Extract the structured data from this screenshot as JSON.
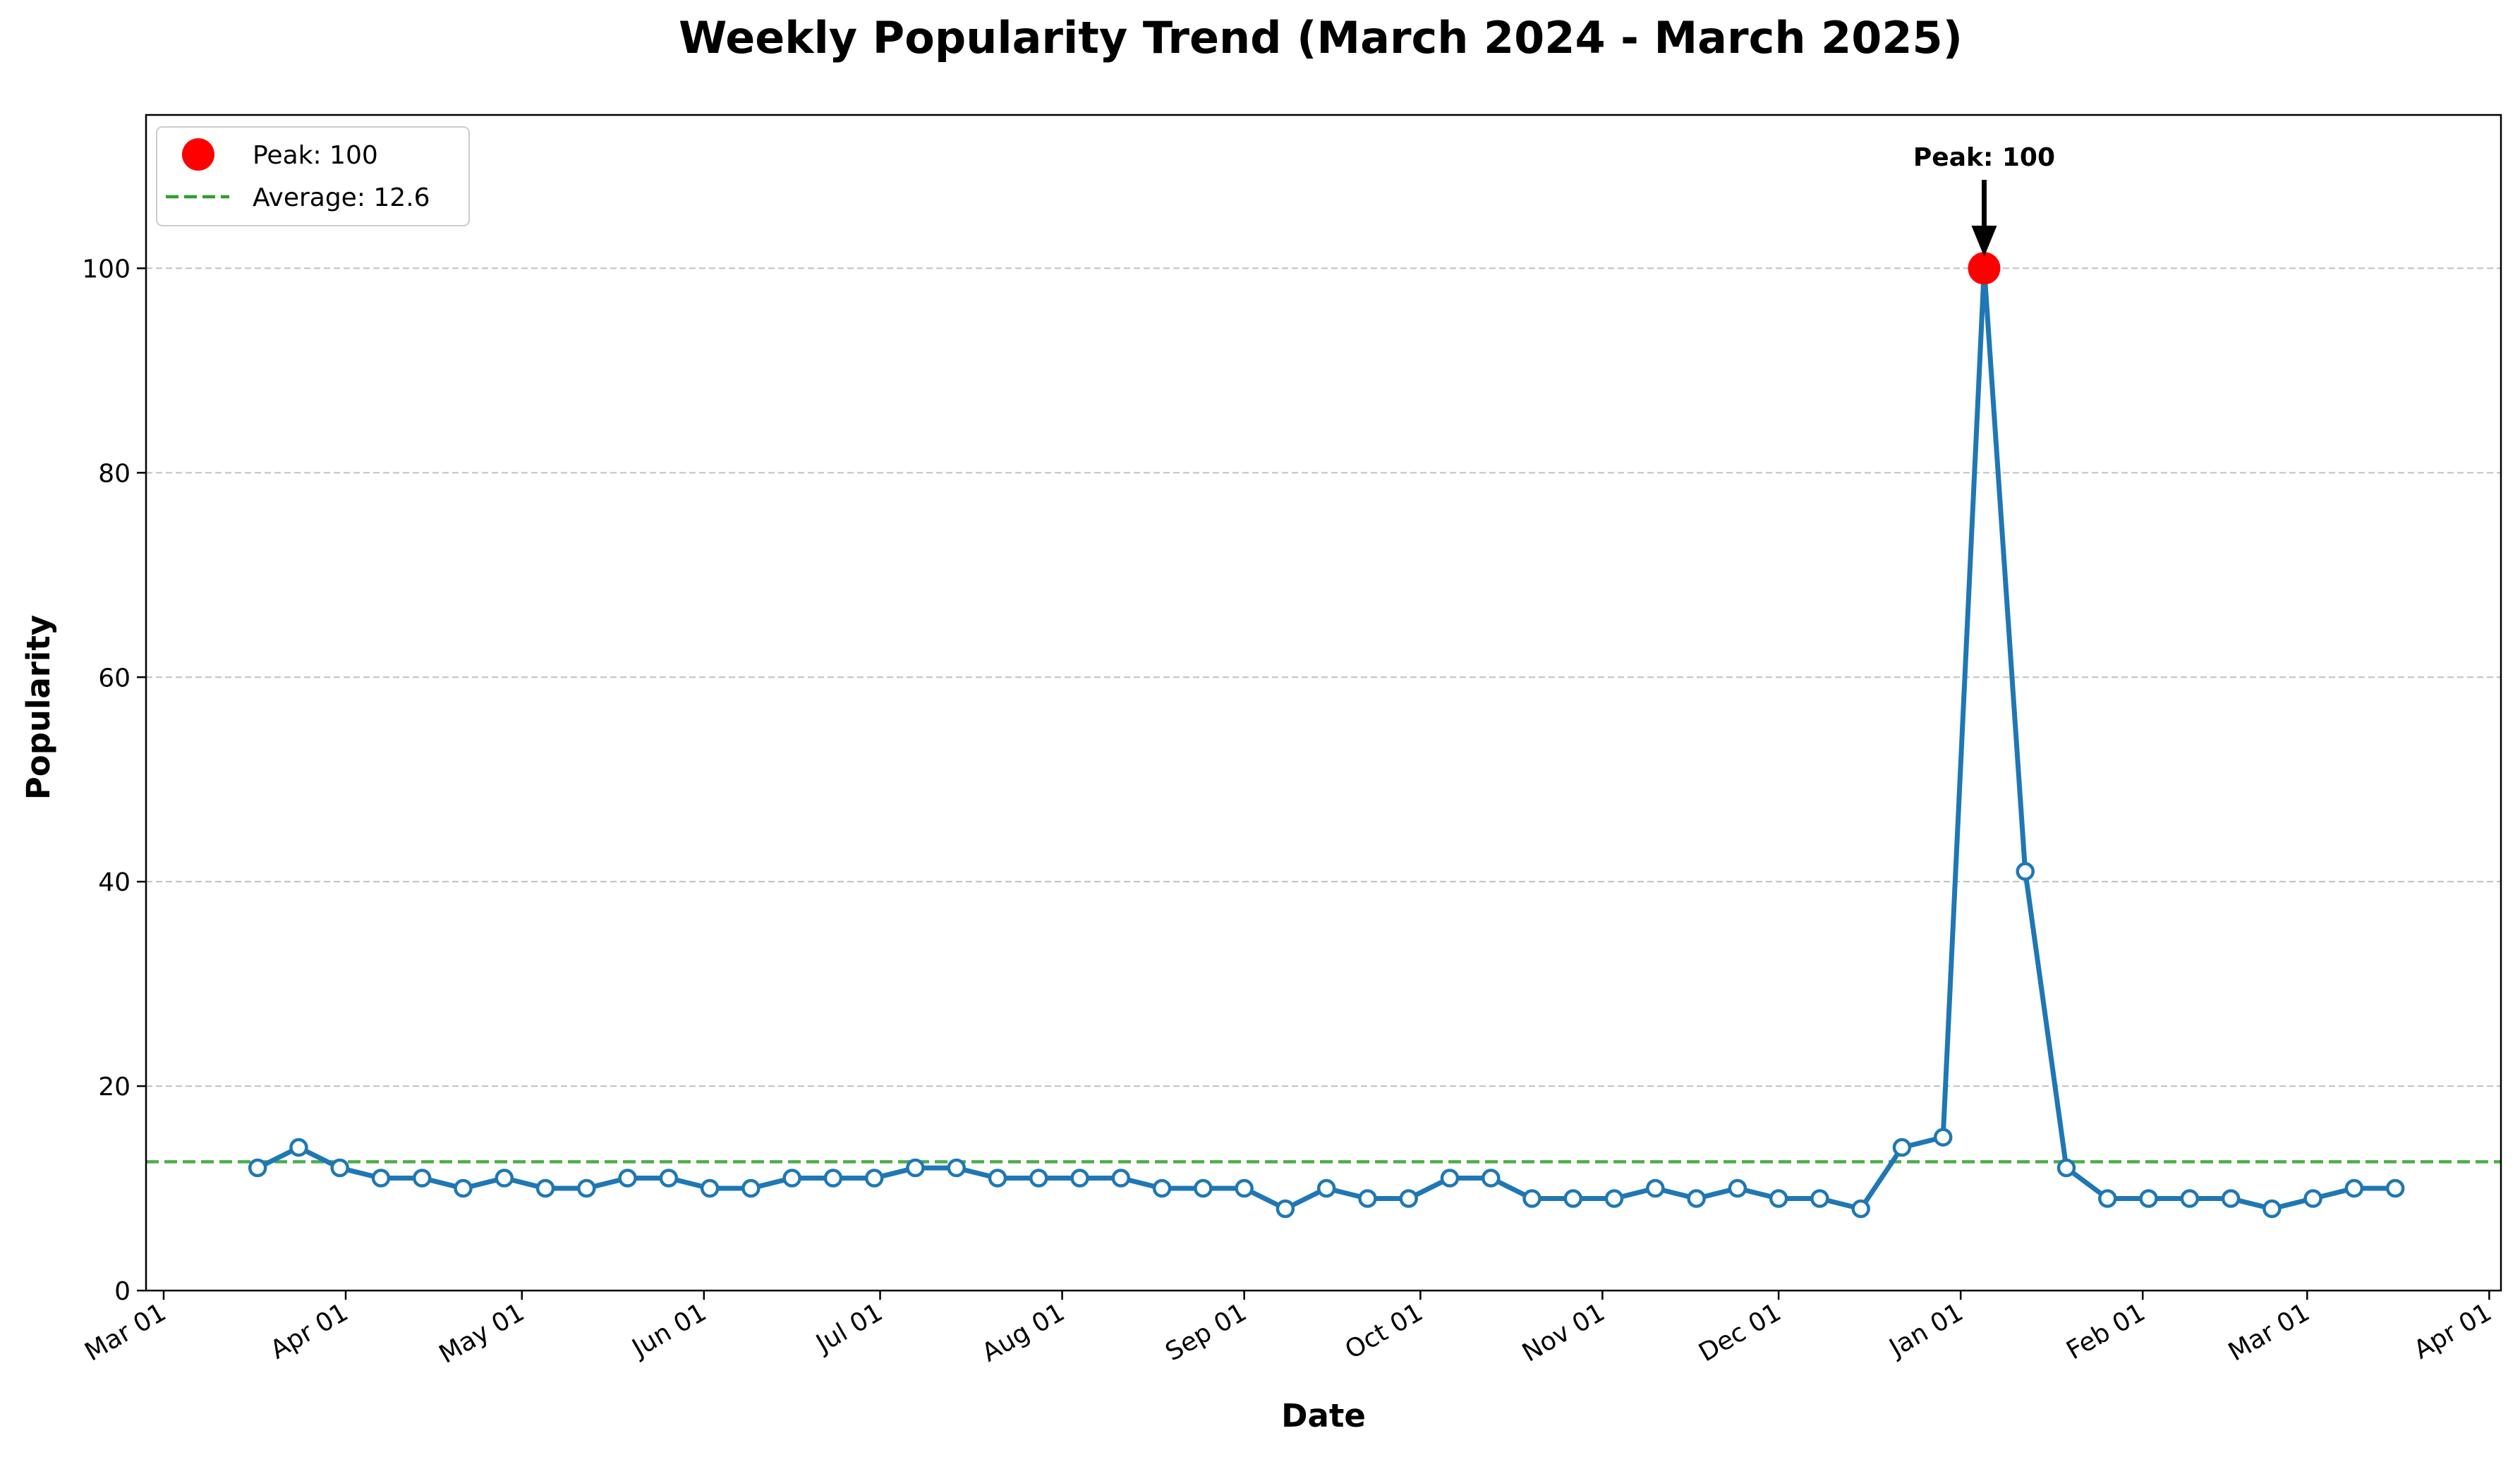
{
  "chart_data": {
    "type": "line",
    "title": "Weekly Popularity Trend (March 2024 - March 2025)",
    "xlabel": "Date",
    "ylabel": "Popularity",
    "xlim": [
      "2024-02-27",
      "2025-04-03"
    ],
    "ylim": [
      0,
      115
    ],
    "grid": {
      "y": true,
      "x": false
    },
    "x_ticks": [
      "2024-03-01",
      "2024-04-01",
      "2024-05-01",
      "2024-06-01",
      "2024-07-01",
      "2024-08-01",
      "2024-09-01",
      "2024-10-01",
      "2024-11-01",
      "2024-12-01",
      "2025-01-01",
      "2025-02-01",
      "2025-03-01",
      "2025-04-01"
    ],
    "x_tick_labels": [
      "Mar 01",
      "Apr 01",
      "May 01",
      "Jun 01",
      "Jul 01",
      "Aug 01",
      "Sep 01",
      "Oct 01",
      "Nov 01",
      "Dec 01",
      "Jan 01",
      "Feb 01",
      "Mar 01",
      "Apr 01"
    ],
    "y_ticks": [
      0,
      20,
      40,
      60,
      80,
      100
    ],
    "y_tick_labels": [
      "0",
      "20",
      "40",
      "60",
      "80",
      "100"
    ],
    "series": [
      {
        "color": "#1f77b4",
        "x": [
          "2024-03-17",
          "2024-03-24",
          "2024-03-31",
          "2024-04-07",
          "2024-04-14",
          "2024-04-21",
          "2024-04-28",
          "2024-05-05",
          "2024-05-12",
          "2024-05-19",
          "2024-05-26",
          "2024-06-02",
          "2024-06-09",
          "2024-06-16",
          "2024-06-23",
          "2024-06-30",
          "2024-07-07",
          "2024-07-14",
          "2024-07-21",
          "2024-07-28",
          "2024-08-04",
          "2024-08-11",
          "2024-08-18",
          "2024-08-25",
          "2024-09-01",
          "2024-09-08",
          "2024-09-15",
          "2024-09-22",
          "2024-09-29",
          "2024-10-06",
          "2024-10-13",
          "2024-10-20",
          "2024-10-27",
          "2024-11-03",
          "2024-11-10",
          "2024-11-17",
          "2024-11-24",
          "2024-12-01",
          "2024-12-08",
          "2024-12-15",
          "2024-12-22",
          "2024-12-29",
          "2025-01-05",
          "2025-01-12",
          "2025-01-19",
          "2025-01-26",
          "2025-02-02",
          "2025-02-09",
          "2025-02-16",
          "2025-02-23",
          "2025-03-02",
          "2025-03-09",
          "2025-03-16"
        ],
        "y": [
          12,
          14,
          12,
          11,
          11,
          10,
          11,
          10,
          10,
          11,
          11,
          10,
          10,
          11,
          11,
          11,
          12,
          12,
          11,
          11,
          11,
          11,
          10,
          10,
          10,
          8,
          10,
          9,
          9,
          11,
          11,
          9,
          9,
          9,
          10,
          9,
          10,
          9,
          9,
          8,
          14,
          15,
          100,
          41,
          12,
          9,
          9,
          9,
          9,
          8,
          9,
          10,
          10
        ]
      }
    ],
    "peak": {
      "x": "2025-01-05",
      "y": 100,
      "label": "Peak: 100",
      "color": "#ff0000"
    },
    "average": {
      "y": 12.6,
      "label": "Average: 12.6",
      "color": "#2ca02c"
    },
    "legend": {
      "placement": "upper-left",
      "items": [
        {
          "label": "Peak: 100"
        },
        {
          "label": "Average: 12.6"
        }
      ]
    }
  }
}
